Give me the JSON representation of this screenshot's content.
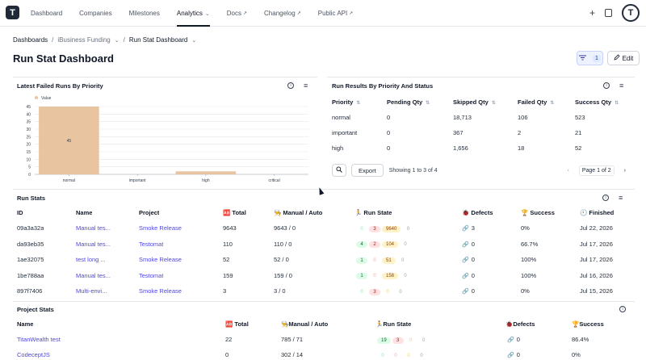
{
  "logo": "T",
  "nav": {
    "items": [
      {
        "label": "Dashboard"
      },
      {
        "label": "Companies"
      },
      {
        "label": "Milestones"
      },
      {
        "label": "Analytics"
      },
      {
        "label": "Docs"
      },
      {
        "label": "Changelog"
      },
      {
        "label": "Public API"
      }
    ],
    "analytics_chevron": "⌄",
    "external_glyph": "↗",
    "plus": "+",
    "avatar": "T"
  },
  "breadcrumb": {
    "root": "Dashboards",
    "sep": "/",
    "group": "iBusiness Funding",
    "current": "Run Stat Dashboard"
  },
  "page_title": "Run Stat Dashboard",
  "toolbar": {
    "filter_count": "1",
    "edit_label": "Edit"
  },
  "failed_runs": {
    "title": "Latest Failed Runs By Priority",
    "legend": "Value"
  },
  "chart_data": {
    "type": "bar",
    "categories": [
      "normal",
      "important",
      "high",
      "critical"
    ],
    "values": [
      45,
      0,
      2,
      0
    ],
    "data_labels": [
      "45",
      "",
      "",
      ""
    ],
    "ylim": [
      0,
      45
    ],
    "yticks": [
      "45",
      "40",
      "35",
      "30",
      "25",
      "20",
      "15",
      "10",
      "5",
      "0"
    ],
    "legend": "Value",
    "bar_color": "#e8c4a0"
  },
  "results": {
    "title": "Run Results By Priority And Status",
    "headers": [
      "Priority",
      "Pending Qty",
      "Skipped Qty",
      "Failed Qty",
      "Success Qty"
    ],
    "rows": [
      [
        "normal",
        "0",
        "18,713",
        "106",
        "523"
      ],
      [
        "important",
        "0",
        "367",
        "2",
        "21"
      ],
      [
        "high",
        "0",
        "1,656",
        "18",
        "52"
      ]
    ],
    "export_label": "Export",
    "showing": "Showing 1 to 3 of 4",
    "page_label": "Page 1 of 2",
    "prev": "‹",
    "next": "›"
  },
  "run_stats": {
    "title": "Run Stats",
    "headers": {
      "id": "ID",
      "name": "Name",
      "project": "Project",
      "total": "🆎 Total",
      "manual": "👨‍🍳 Manual / Auto",
      "state": "🏃 Run State",
      "defects": "🐞 Defects",
      "success": "🏆 Success",
      "finished": "🕙 Finished"
    },
    "rows": [
      {
        "id": "09a3a32a",
        "name": "Manual tes...",
        "project": "Smoke Release",
        "total": "9643",
        "manual": "9643 / 0",
        "s1": "0",
        "s2": "3",
        "s3": "9640",
        "s4": "0",
        "defects": "3",
        "success": "0%",
        "finished": "Jul 22, 2026"
      },
      {
        "id": "da93eb35",
        "name": "Manual tes...",
        "project": "Testomat",
        "total": "110",
        "manual": "110 / 0",
        "s1": "4",
        "s2": "2",
        "s3": "104",
        "s4": "0",
        "defects": "0",
        "success": "66.7%",
        "finished": "Jul 17, 2026"
      },
      {
        "id": "1ae32075",
        "name": "test long ...",
        "project": "Smoke Release",
        "total": "52",
        "manual": "52 / 0",
        "s1": "1",
        "s2": "0",
        "s3": "51",
        "s4": "0",
        "defects": "0",
        "success": "100%",
        "finished": "Jul 17, 2026"
      },
      {
        "id": "1be788aa",
        "name": "Manual tes...",
        "project": "Testomat",
        "total": "159",
        "manual": "159 / 0",
        "s1": "1",
        "s2": "0",
        "s3": "158",
        "s4": "0",
        "defects": "0",
        "success": "100%",
        "finished": "Jul 16, 2026"
      },
      {
        "id": "897f7406",
        "name": "Multi-envi...",
        "project": "Smoke Release",
        "total": "3",
        "manual": "3 / 0",
        "s1": "0",
        "s2": "3",
        "s3": "0",
        "s4": "0",
        "defects": "0",
        "success": "0%",
        "finished": "Jul 15, 2026"
      }
    ]
  },
  "project_stats": {
    "title": "Project Stats",
    "headers": {
      "name": "Name",
      "total": "🆎 Total",
      "manual": "👨‍🍳Manual / Auto",
      "state": "🏃Run State",
      "defects": "🐞Defects",
      "success": "🏆Success"
    },
    "rows": [
      {
        "name": "TitanWealth test",
        "total": "22",
        "manual": "785 / 71",
        "s1": "19",
        "s2": "3",
        "s3": "0",
        "s4": "0",
        "defects": "0",
        "success": "86.4%"
      },
      {
        "name": "CodeceptJS",
        "total": "0",
        "manual": "302 / 14",
        "s1": "0",
        "s2": "0",
        "s3": "0",
        "s4": "0",
        "defects": "0",
        "success": "0%"
      }
    ]
  }
}
